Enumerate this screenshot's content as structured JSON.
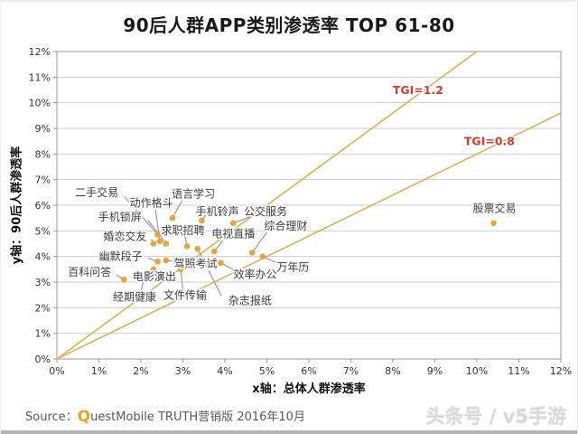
{
  "title": "90后人群APP类别渗透率 TOP 61-80",
  "source": {
    "prefix": "Source：",
    "logo_initial": "Q",
    "rest": "uestMobile TRUTH营销版 2016年10月"
  },
  "watermark": "头条号 / v5手游",
  "colors": {
    "point": "#e8a33d",
    "reference_line": "#dfb054",
    "reference_label": "#d63a2c",
    "gridline": "#cdcdcd",
    "plot_border": "#9a9a9a",
    "leader_line": "#8a8a8a"
  },
  "chart_data": {
    "type": "scatter",
    "title": "90后人群APP类别渗透率 TOP 61-80",
    "xlabel": "x轴：总体人群渗透率",
    "ylabel": "y轴：90后人群渗透率",
    "xlim": [
      0,
      12
    ],
    "ylim": [
      0,
      12
    ],
    "grid": "horizontal",
    "legend": "none",
    "x_ticks": [
      "0%",
      "1%",
      "2%",
      "3%",
      "4%",
      "5%",
      "6%",
      "7%",
      "8%",
      "9%",
      "10%",
      "11%",
      "12%"
    ],
    "y_ticks": [
      "0%",
      "1%",
      "2%",
      "3%",
      "4%",
      "5%",
      "6%",
      "7%",
      "8%",
      "9%",
      "10%",
      "11%",
      "12%"
    ],
    "reference_lines": [
      {
        "label": "TGI=1.2",
        "slope": 1.2,
        "label_x": 8.6,
        "label_y": 10.35
      },
      {
        "label": "TGI=0.8",
        "slope": 0.8,
        "label_x": 10.3,
        "label_y": 8.35
      }
    ],
    "points": [
      {
        "label": "二手交易",
        "x": 2.4,
        "y": 4.85,
        "lx": 0.95,
        "ly": 6.5,
        "ax": 1.62,
        "ay": 6.32
      },
      {
        "label": "动作格斗",
        "x": 2.45,
        "y": 4.6,
        "lx": 2.25,
        "ly": 6.08,
        "ax": 2.35,
        "ay": 5.82
      },
      {
        "label": "语言学习",
        "x": 2.75,
        "y": 5.5,
        "lx": 3.25,
        "ly": 6.45,
        "ax": 2.98,
        "ay": 6.18
      },
      {
        "label": "手机锁屏",
        "x": 2.6,
        "y": 4.5,
        "lx": 1.5,
        "ly": 5.55,
        "ax": 2.17,
        "ay": 5.42
      },
      {
        "label": "手机铃声",
        "x": 3.45,
        "y": 5.4,
        "lx": 3.82,
        "ly": 5.75,
        "ax": 3.55,
        "ay": 5.62
      },
      {
        "label": "公交服务",
        "x": 4.2,
        "y": 5.3,
        "lx": 4.97,
        "ly": 5.75,
        "ax": 4.6,
        "ay": 5.55
      },
      {
        "label": "婚恋交友",
        "x": 2.3,
        "y": 4.5,
        "lx": 1.62,
        "ly": 4.78,
        "ax": 2.25,
        "ay": 4.68
      },
      {
        "label": "求职招聘",
        "x": 3.1,
        "y": 4.4,
        "lx": 3.0,
        "ly": 5.02,
        "ax": 3.05,
        "ay": 4.78
      },
      {
        "label": "电视直播",
        "x": 3.75,
        "y": 4.2,
        "lx": 4.2,
        "ly": 4.88,
        "ax": 3.95,
        "ay": 4.62
      },
      {
        "label": "综合理财",
        "x": 4.65,
        "y": 4.15,
        "lx": 5.45,
        "ly": 5.18,
        "ax": 5.0,
        "ay": 4.95
      },
      {
        "label": "幽默段子",
        "x": 2.4,
        "y": 3.8,
        "lx": 1.52,
        "ly": 4.0,
        "ax": 2.17,
        "ay": 3.93
      },
      {
        "label": "百科问答",
        "x": 1.6,
        "y": 3.1,
        "lx": 0.78,
        "ly": 3.38,
        "ax": 1.42,
        "ay": 3.28
      },
      {
        "label": "驾照考试",
        "x": 2.6,
        "y": 3.85,
        "lx": 3.3,
        "ly": 3.72,
        "ax": 2.92,
        "ay": 3.78
      },
      {
        "label": "效率办公",
        "x": 3.9,
        "y": 3.75,
        "lx": 4.72,
        "ly": 3.3,
        "ax": 4.28,
        "ay": 3.42
      },
      {
        "label": "万年历",
        "x": 4.9,
        "y": 4.0,
        "lx": 5.62,
        "ly": 3.58,
        "ax": 5.28,
        "ay": 3.72
      },
      {
        "label": "电影演出",
        "x": 2.3,
        "y": 3.5,
        "lx": 2.32,
        "ly": 3.22,
        "ax": 2.31,
        "ay": 3.38
      },
      {
        "label": "经期健康",
        "x": 2.1,
        "y": 3.35,
        "lx": 1.85,
        "ly": 2.42,
        "ax": 2.0,
        "ay": 2.62
      },
      {
        "label": "文件传输",
        "x": 2.95,
        "y": 3.5,
        "lx": 3.05,
        "ly": 2.48,
        "ax": 3.0,
        "ay": 2.68
      },
      {
        "label": "杂志报纸",
        "x": 3.35,
        "y": 4.3,
        "lx": 4.6,
        "ly": 2.28,
        "ax": 3.92,
        "ay": 2.45
      },
      {
        "label": "股票交易",
        "x": 10.4,
        "y": 5.3,
        "lx": 10.42,
        "ly": 5.88
      }
    ]
  }
}
